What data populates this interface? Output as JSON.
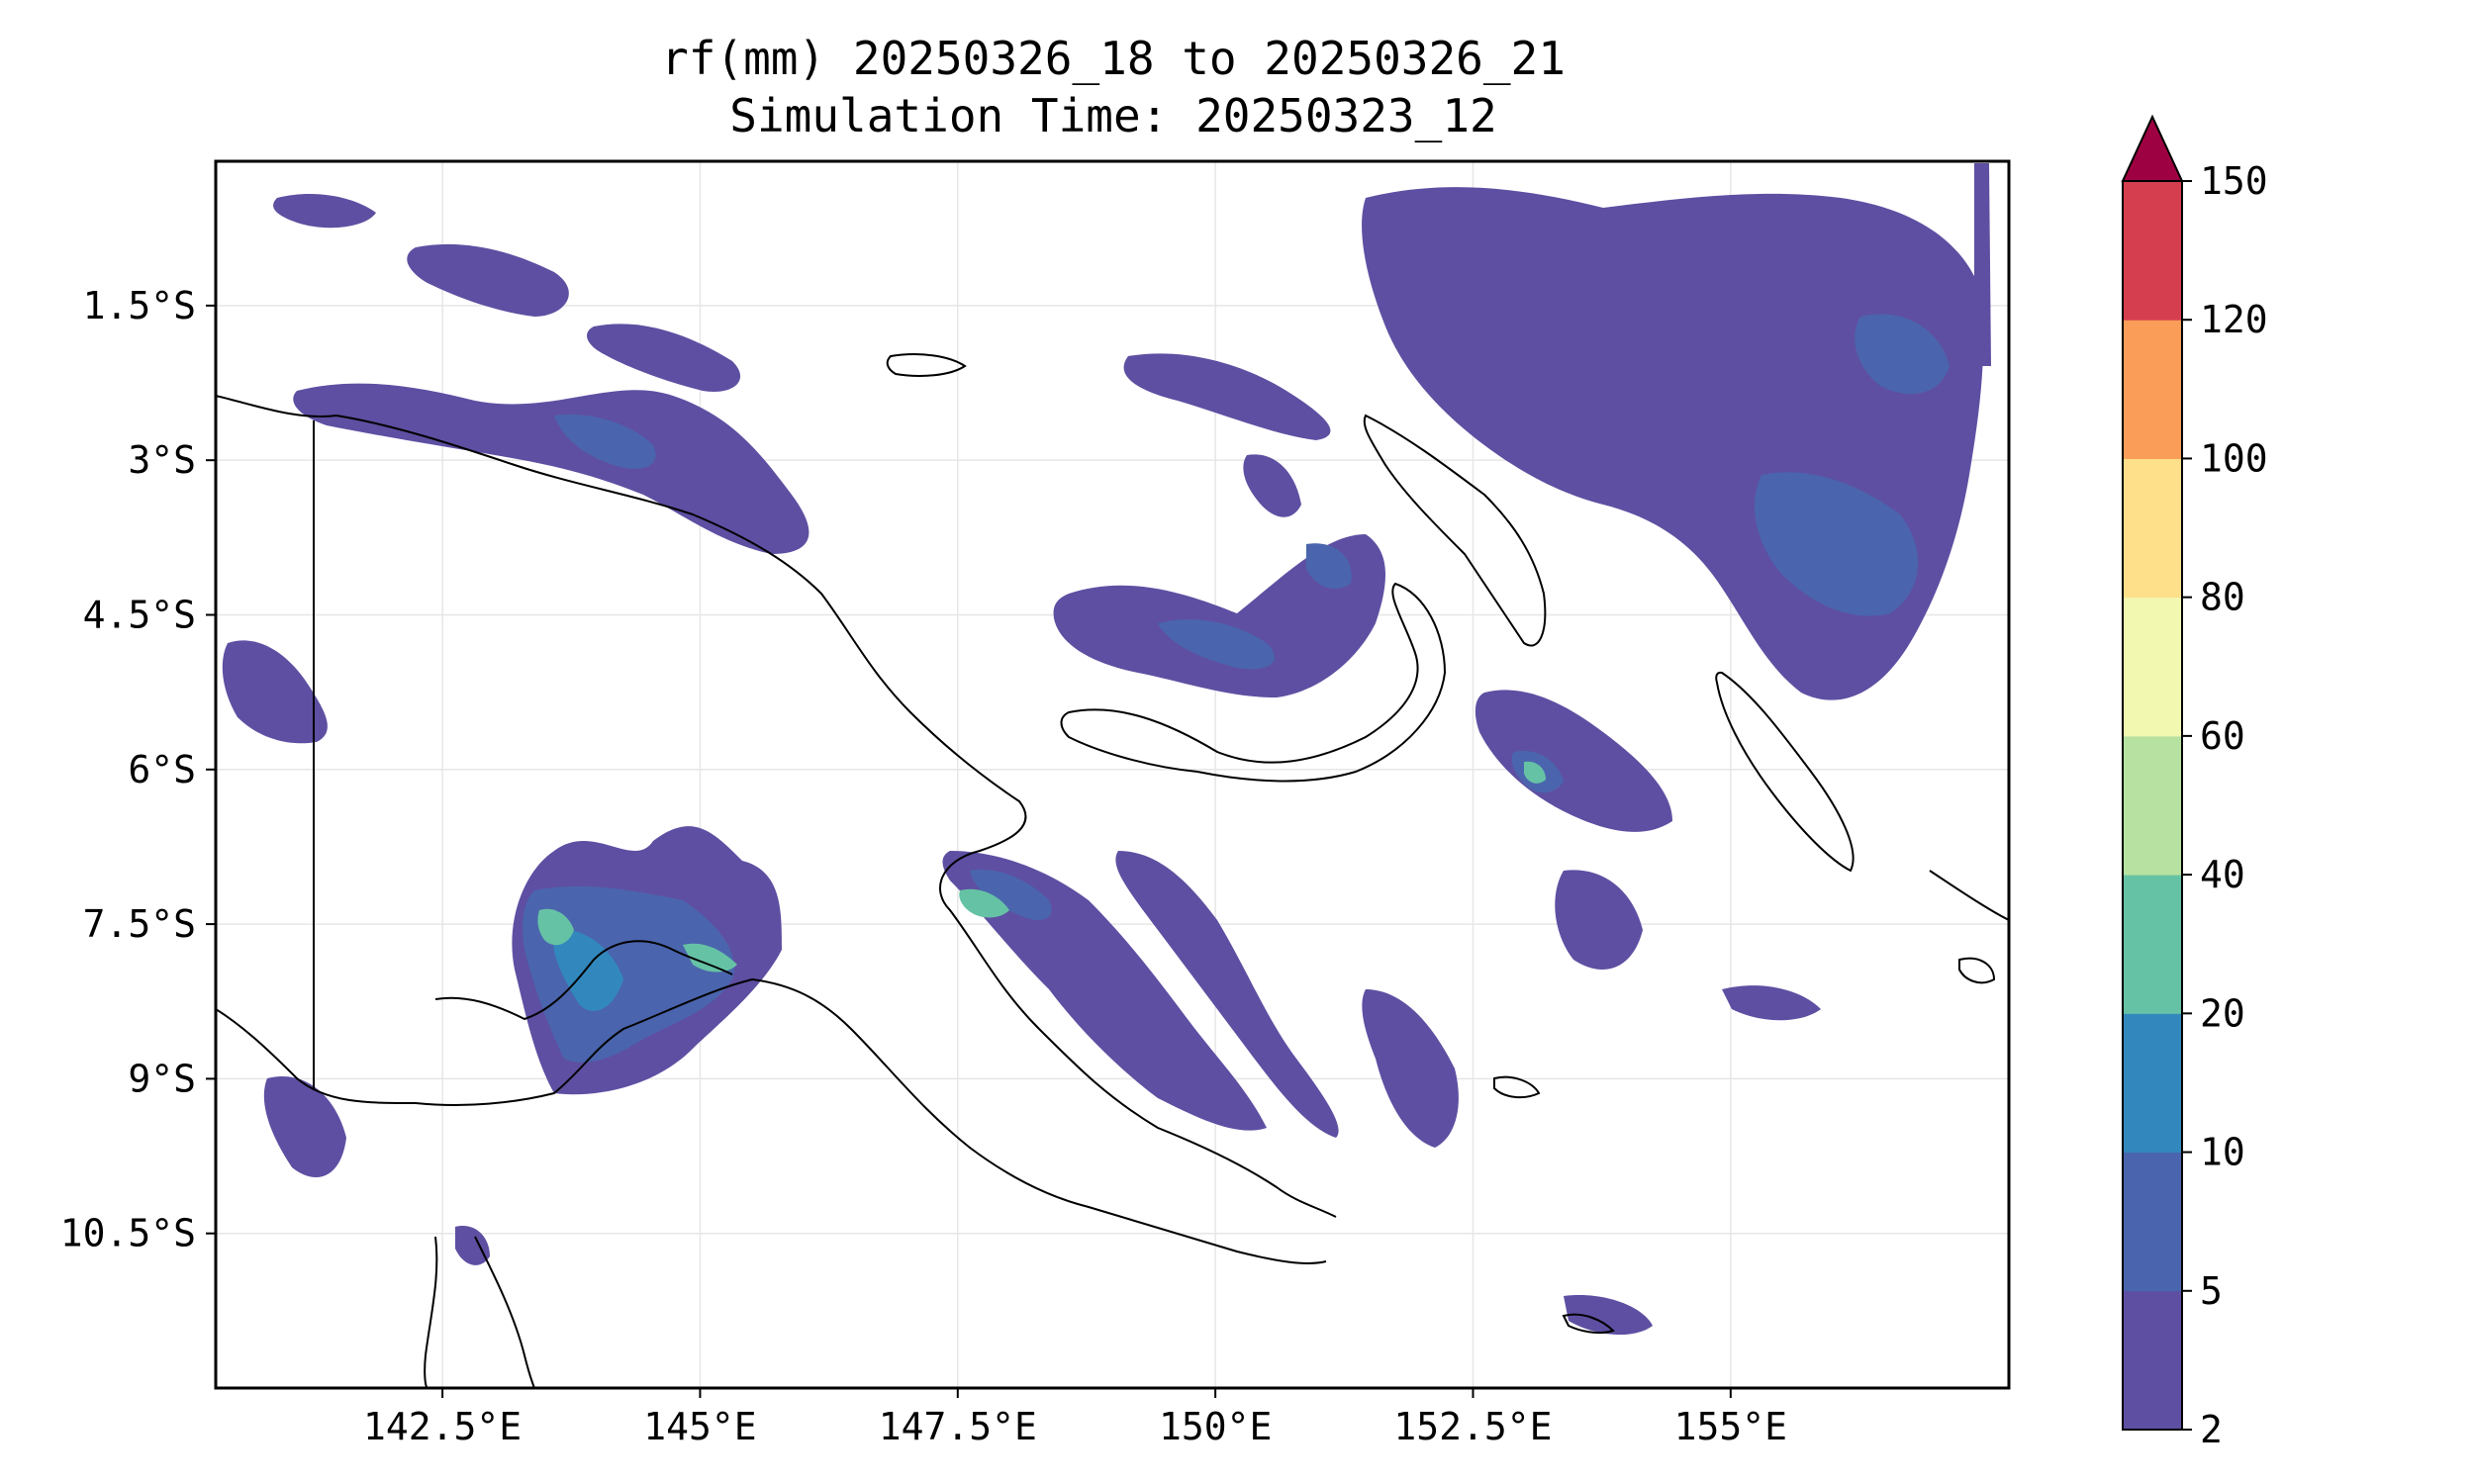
{
  "title": {
    "line1": "rf(mm) 20250326_18 to 20250326_21",
    "line2": "Simulation Time: 20250323_12"
  },
  "map": {
    "lon_range": [
      140.3,
      157.7
    ],
    "lat_range": [
      -12.0,
      -0.1
    ],
    "x_ticks": [
      {
        "value": 142.5,
        "label": "142.5°E"
      },
      {
        "value": 145.0,
        "label": "145°E"
      },
      {
        "value": 147.5,
        "label": "147.5°E"
      },
      {
        "value": 150.0,
        "label": "150°E"
      },
      {
        "value": 152.5,
        "label": "152.5°E"
      },
      {
        "value": 155.0,
        "label": "155°E"
      }
    ],
    "y_ticks": [
      {
        "value": -1.5,
        "label": "1.5°S"
      },
      {
        "value": -3.0,
        "label": "3°S"
      },
      {
        "value": -4.5,
        "label": "4.5°S"
      },
      {
        "value": -6.0,
        "label": "6°S"
      },
      {
        "value": -7.5,
        "label": "7.5°S"
      },
      {
        "value": -9.0,
        "label": "9°S"
      },
      {
        "value": -10.5,
        "label": "10.5°S"
      }
    ],
    "gridlines": true
  },
  "colorbar": {
    "levels": [
      {
        "label": "2"
      },
      {
        "label": "5"
      },
      {
        "label": "10"
      },
      {
        "label": "20"
      },
      {
        "label": "40"
      },
      {
        "label": "60"
      },
      {
        "label": "80"
      },
      {
        "label": "100"
      },
      {
        "label": "120"
      },
      {
        "label": "150"
      }
    ],
    "colors": [
      "#5e4fa2",
      "#4a65ad",
      "#3288bd",
      "#66c2a5",
      "#b7e1a1",
      "#f3f8b1",
      "#fee08b",
      "#f99d58",
      "#d53e4f"
    ],
    "extend_color": "#9e0142",
    "extend": "max"
  }
}
